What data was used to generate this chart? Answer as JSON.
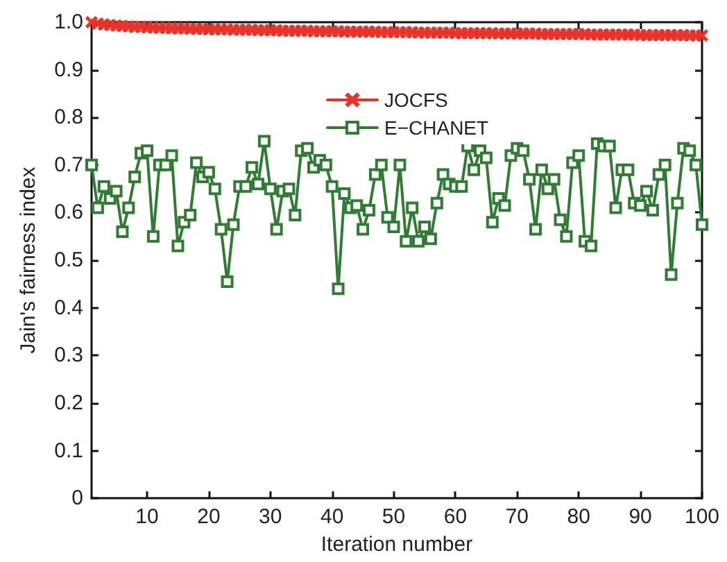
{
  "chart_data": {
    "type": "line",
    "xlabel": "Iteration number",
    "ylabel": "Jain's fairness index",
    "x": [
      1,
      2,
      3,
      4,
      5,
      6,
      7,
      8,
      9,
      10,
      11,
      12,
      13,
      14,
      15,
      16,
      17,
      18,
      19,
      20,
      21,
      22,
      23,
      24,
      25,
      26,
      27,
      28,
      29,
      30,
      31,
      32,
      33,
      34,
      35,
      36,
      37,
      38,
      39,
      40,
      41,
      42,
      43,
      44,
      45,
      46,
      47,
      48,
      49,
      50,
      51,
      52,
      53,
      54,
      55,
      56,
      57,
      58,
      59,
      60,
      61,
      62,
      63,
      64,
      65,
      66,
      67,
      68,
      69,
      70,
      71,
      72,
      73,
      74,
      75,
      76,
      77,
      78,
      79,
      80,
      81,
      82,
      83,
      84,
      85,
      86,
      87,
      88,
      89,
      90,
      91,
      92,
      93,
      94,
      95,
      96,
      97,
      98,
      99,
      100
    ],
    "series": [
      {
        "name": "JOCFS",
        "color": "#e8322a",
        "marker": "cross",
        "values": [
          1.0,
          0.997,
          0.995,
          0.994,
          0.993,
          0.992,
          0.991,
          0.99,
          0.99,
          0.989,
          0.989,
          0.988,
          0.988,
          0.987,
          0.987,
          0.987,
          0.986,
          0.986,
          0.986,
          0.985,
          0.985,
          0.985,
          0.985,
          0.984,
          0.984,
          0.984,
          0.984,
          0.983,
          0.983,
          0.983,
          0.983,
          0.982,
          0.982,
          0.982,
          0.982,
          0.982,
          0.981,
          0.981,
          0.981,
          0.981,
          0.981,
          0.98,
          0.98,
          0.98,
          0.98,
          0.98,
          0.98,
          0.979,
          0.979,
          0.979,
          0.979,
          0.979,
          0.979,
          0.978,
          0.978,
          0.978,
          0.978,
          0.978,
          0.978,
          0.977,
          0.977,
          0.977,
          0.977,
          0.977,
          0.977,
          0.977,
          0.976,
          0.976,
          0.976,
          0.976,
          0.976,
          0.976,
          0.976,
          0.975,
          0.975,
          0.975,
          0.975,
          0.975,
          0.975,
          0.975,
          0.975,
          0.974,
          0.974,
          0.974,
          0.974,
          0.974,
          0.974,
          0.974,
          0.974,
          0.973,
          0.973,
          0.973,
          0.973,
          0.973,
          0.973,
          0.973,
          0.973,
          0.972,
          0.972,
          0.972
        ]
      },
      {
        "name": "E−CHANET",
        "color": "#2e7d32",
        "marker": "square",
        "values": [
          0.7,
          0.61,
          0.655,
          0.63,
          0.645,
          0.56,
          0.61,
          0.675,
          0.725,
          0.73,
          0.55,
          0.7,
          0.7,
          0.72,
          0.53,
          0.58,
          0.595,
          0.705,
          0.675,
          0.685,
          0.65,
          0.565,
          0.455,
          0.575,
          0.655,
          0.655,
          0.695,
          0.66,
          0.75,
          0.65,
          0.565,
          0.645,
          0.65,
          0.595,
          0.73,
          0.735,
          0.695,
          0.71,
          0.7,
          0.655,
          0.44,
          0.64,
          0.61,
          0.615,
          0.565,
          0.605,
          0.68,
          0.7,
          0.59,
          0.57,
          0.7,
          0.54,
          0.61,
          0.54,
          0.57,
          0.545,
          0.62,
          0.68,
          0.66,
          0.655,
          0.655,
          0.74,
          0.69,
          0.73,
          0.715,
          0.58,
          0.63,
          0.615,
          0.72,
          0.735,
          0.73,
          0.67,
          0.565,
          0.69,
          0.65,
          0.67,
          0.585,
          0.55,
          0.705,
          0.72,
          0.54,
          0.53,
          0.745,
          0.74,
          0.74,
          0.61,
          0.69,
          0.69,
          0.62,
          0.615,
          0.645,
          0.605,
          0.68,
          0.7,
          0.47,
          0.62,
          0.735,
          0.73,
          0.7,
          0.575
        ]
      }
    ],
    "xlim": [
      1,
      100
    ],
    "xticks": [
      10,
      20,
      30,
      40,
      50,
      60,
      70,
      80,
      90,
      100
    ],
    "ylim": [
      0,
      1
    ],
    "yticks": [
      0,
      0.1,
      0.2,
      0.3,
      0.4,
      0.5,
      0.6,
      0.7,
      0.8,
      0.9,
      {
        "value": 1,
        "label": "1.0"
      }
    ],
    "legend": "top",
    "grid": false,
    "line_style": "solid"
  }
}
